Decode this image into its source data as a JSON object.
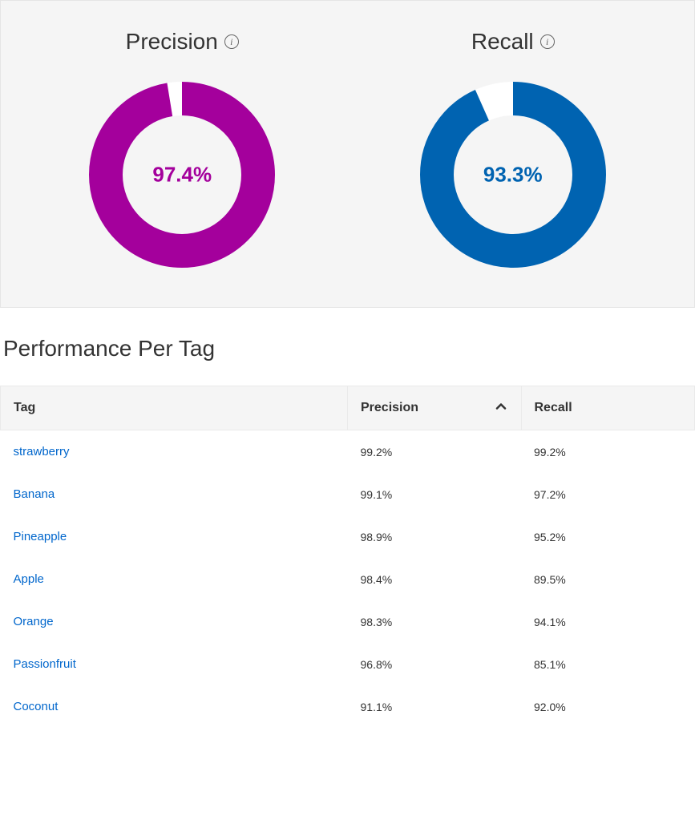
{
  "metrics_panel": {
    "background_color": "#f5f5f5",
    "precision": {
      "label": "Precision",
      "value": 97.4,
      "display": "97.4%",
      "color": "#a4009c",
      "track_color": "#ffffff",
      "stroke_width": 42,
      "radius": 95,
      "svg_size": 240,
      "font_size": 26,
      "font_weight": 600
    },
    "recall": {
      "label": "Recall",
      "value": 93.3,
      "display": "93.3%",
      "color": "#0063b1",
      "track_color": "#ffffff",
      "stroke_width": 42,
      "radius": 95,
      "svg_size": 240,
      "font_size": 26,
      "font_weight": 600
    }
  },
  "section": {
    "title": "Performance Per Tag"
  },
  "table": {
    "columns": [
      {
        "key": "tag",
        "label": "Tag",
        "sortable": false
      },
      {
        "key": "precision",
        "label": "Precision",
        "sortable": true,
        "sorted": "asc"
      },
      {
        "key": "recall",
        "label": "Recall",
        "sortable": false
      }
    ],
    "link_color": "#0066cc",
    "header_bg": "#f5f5f5",
    "rows": [
      {
        "tag": "strawberry",
        "precision": "99.2%",
        "recall": "99.2%"
      },
      {
        "tag": "Banana",
        "precision": "99.1%",
        "recall": "97.2%"
      },
      {
        "tag": "Pineapple",
        "precision": "98.9%",
        "recall": "95.2%"
      },
      {
        "tag": "Apple",
        "precision": "98.4%",
        "recall": "89.5%"
      },
      {
        "tag": "Orange",
        "precision": "98.3%",
        "recall": "94.1%"
      },
      {
        "tag": "Passionfruit",
        "precision": "96.8%",
        "recall": "85.1%"
      },
      {
        "tag": "Coconut",
        "precision": "91.1%",
        "recall": "92.0%"
      }
    ]
  }
}
